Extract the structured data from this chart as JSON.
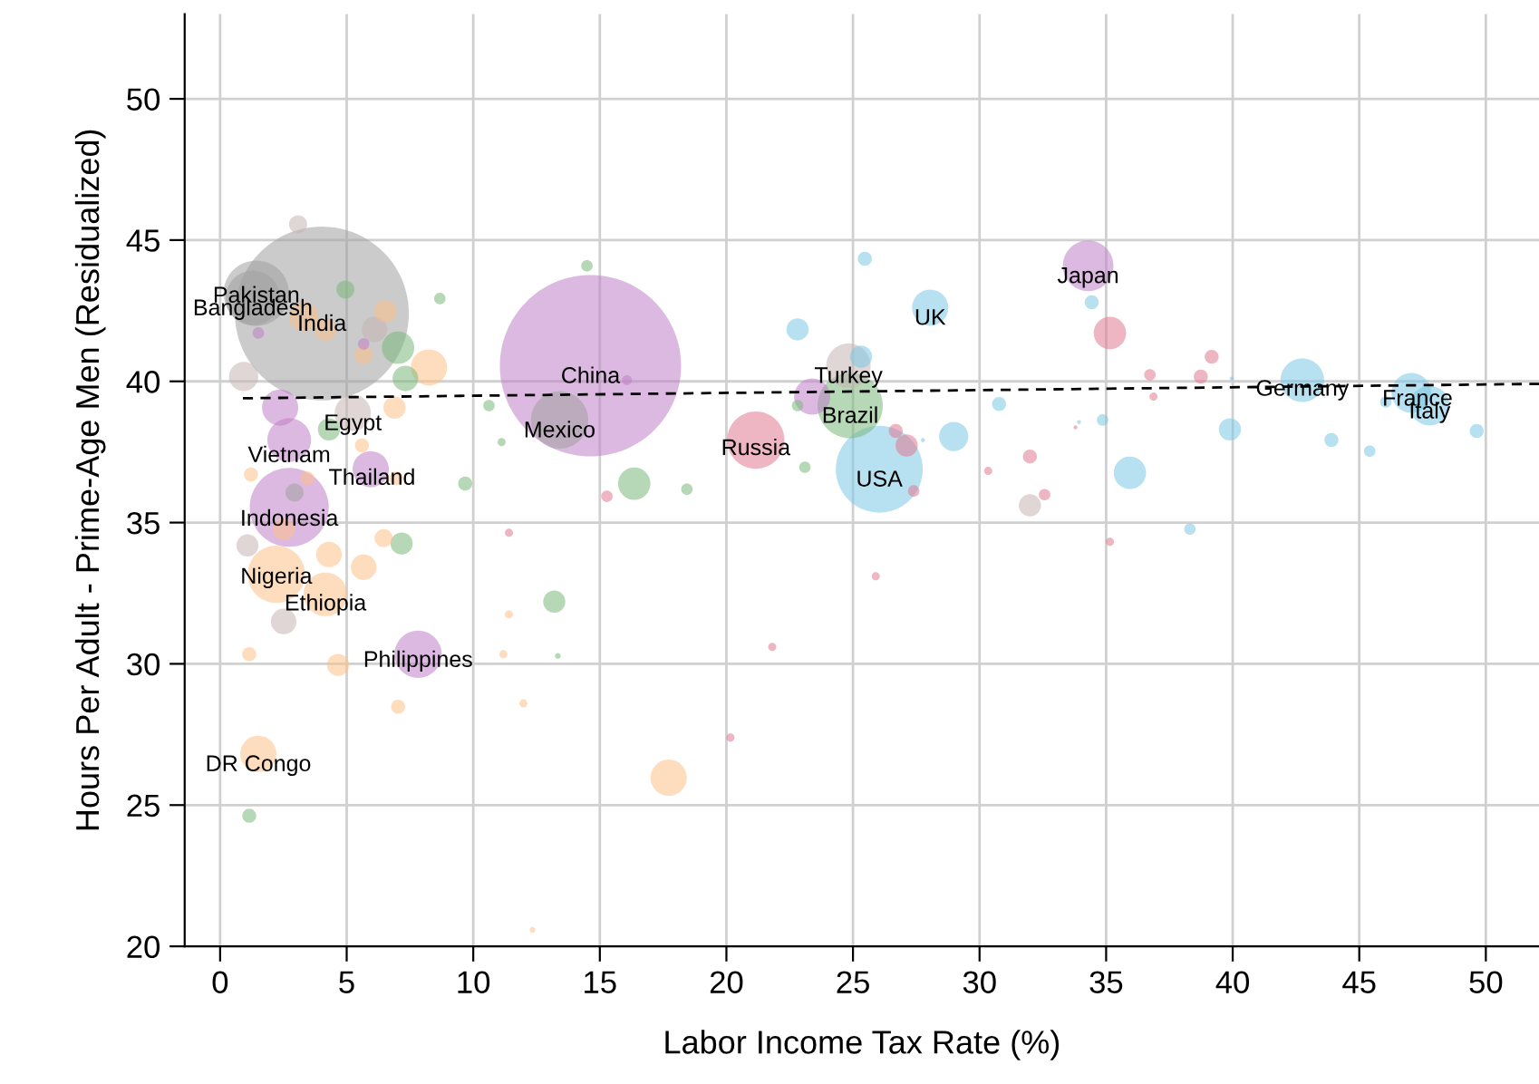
{
  "chart_data": {
    "type": "bubble",
    "xlabel": "Labor Income Tax Rate (%)",
    "ylabel": "Hours Per Adult - Prime-Age Men (Residualized)",
    "xlim": [
      -1.4,
      52.1
    ],
    "ylim": [
      20,
      53
    ],
    "xticks": [
      0,
      5,
      10,
      15,
      20,
      25,
      30,
      35,
      40,
      45,
      50
    ],
    "yticks": [
      20,
      25,
      30,
      35,
      40,
      45,
      50
    ],
    "grid": true,
    "legend": false,
    "series": [
      {
        "color": "#a0a0a0",
        "x": [
          4.02,
          1.43,
          1.29,
          13.41,
          2.94
        ],
        "values": [
          42.4,
          43.12,
          42.95,
          38.63,
          36.06
        ],
        "sizes": [
          0.92,
          0.13,
          0.09,
          0.1,
          0.01
        ]
      },
      {
        "color": "#c8b4b4",
        "x": [
          3.08,
          0.93,
          6.1,
          24.82,
          1.08,
          2.51,
          31.99,
          5.24
        ],
        "values": [
          45.56,
          40.17,
          41.84,
          40.55,
          34.19,
          31.5,
          35.61,
          38.88
        ],
        "sizes": [
          0.01,
          0.026,
          0.02,
          0.06,
          0.015,
          0.02,
          0.015,
          0.04
        ]
      },
      {
        "color": "#c080c8",
        "x": [
          14.63,
          34.29,
          2.73,
          2.73,
          5.95,
          7.82,
          2.37,
          23.39,
          1.51,
          5.67,
          16.07
        ],
        "values": [
          40.55,
          44.09,
          37.92,
          35.54,
          36.89,
          30.34,
          39.07,
          39.46,
          41.71,
          41.32,
          40.04
        ],
        "sizes": [
          1.0,
          0.078,
          0.058,
          0.19,
          0.04,
          0.068,
          0.04,
          0.04,
          0.004,
          0.004,
          0.003
        ]
      },
      {
        "color": "#fdc088",
        "x": [
          1.51,
          2.22,
          4.16,
          4.3,
          5.67,
          6.46,
          4.66,
          1.15,
          7.03,
          17.72,
          11.41,
          11.19,
          11.98,
          12.34,
          8.25,
          6.53,
          3.3,
          4.16,
          5.67,
          6.89,
          5.6,
          1.22,
          6.96,
          3.44,
          2.51
        ],
        "values": [
          26.81,
          33.17,
          32.46,
          33.87,
          33.42,
          34.45,
          29.96,
          30.34,
          28.48,
          25.97,
          31.75,
          30.34,
          28.6,
          20.58,
          40.49,
          42.48,
          42.29,
          41.84,
          40.94,
          39.07,
          37.73,
          36.7,
          36.57,
          36.57,
          34.77
        ],
        "sizes": [
          0.04,
          0.1,
          0.058,
          0.02,
          0.02,
          0.01,
          0.015,
          0.006,
          0.006,
          0.04,
          0.002,
          0.002,
          0.002,
          0.001,
          0.04,
          0.015,
          0.026,
          0.015,
          0.01,
          0.015,
          0.006,
          0.006,
          0.006,
          0.006,
          0.015
        ]
      },
      {
        "color": "#7cb87c",
        "x": [
          24.89,
          16.36,
          4.95,
          7.03,
          7.32,
          8.68,
          4.3,
          9.68,
          7.17,
          1.15,
          14.49,
          10.62,
          11.12,
          18.44,
          13.2,
          23.1,
          13.34,
          22.81
        ],
        "values": [
          39.14,
          36.38,
          43.25,
          41.19,
          40.1,
          42.93,
          38.3,
          36.38,
          34.26,
          24.62,
          44.09,
          39.14,
          37.85,
          36.18,
          32.2,
          36.96,
          30.28,
          39.14
        ],
        "sizes": [
          0.13,
          0.032,
          0.01,
          0.032,
          0.02,
          0.004,
          0.015,
          0.006,
          0.015,
          0.006,
          0.004,
          0.004,
          0.002,
          0.004,
          0.015,
          0.004,
          0.001,
          0.004
        ]
      },
      {
        "color": "#7cc8e4",
        "x": [
          26.04,
          28.05,
          42.75,
          47.06,
          47.78,
          25.47,
          22.81,
          34.43,
          28.98,
          30.77,
          34.86,
          35.94,
          39.89,
          43.9,
          45.41,
          46.05,
          49.64,
          38.31,
          27.76,
          25.32,
          33.93,
          39.96
        ],
        "values": [
          36.89,
          42.61,
          40.04,
          39.59,
          39.14,
          44.34,
          41.84,
          42.8,
          38.05,
          39.2,
          38.63,
          36.76,
          38.3,
          37.92,
          37.53,
          39.27,
          38.24,
          34.77,
          37.92,
          40.87,
          38.56,
          40.1
        ],
        "sizes": [
          0.23,
          0.04,
          0.058,
          0.048,
          0.048,
          0.006,
          0.015,
          0.006,
          0.026,
          0.006,
          0.004,
          0.032,
          0.015,
          0.006,
          0.004,
          0.004,
          0.006,
          0.004,
          0.0005,
          0.015,
          0.0005,
          0.0005
        ]
      },
      {
        "color": "#e07890",
        "x": [
          21.16,
          35.15,
          39.17,
          38.74,
          36.73,
          36.87,
          26.69,
          27.12,
          27.4,
          31.99,
          32.57,
          30.34,
          33.79,
          35.15,
          25.9,
          15.28,
          11.41,
          21.81,
          20.16
        ],
        "values": [
          37.92,
          41.71,
          40.87,
          40.17,
          40.23,
          39.46,
          38.24,
          37.73,
          36.12,
          37.34,
          35.99,
          36.83,
          38.37,
          34.32,
          33.1,
          35.93,
          34.64,
          30.6,
          27.39
        ],
        "sizes": [
          0.1,
          0.032,
          0.006,
          0.006,
          0.004,
          0.002,
          0.006,
          0.015,
          0.004,
          0.006,
          0.004,
          0.002,
          0.0005,
          0.002,
          0.002,
          0.004,
          0.002,
          0.002,
          0.002
        ]
      },
      {
        "type": "line",
        "color": "#000000",
        "line_style": "dashed",
        "x": [
          0.9,
          52.1
        ],
        "values": [
          39.4,
          39.91
        ]
      }
    ],
    "annotations": [
      {
        "text": "India",
        "x": 4.02,
        "y": 42.4
      },
      {
        "text": "Pakistan",
        "x": 1.43,
        "y": 43.4
      },
      {
        "text": "Bangladesh",
        "x": 1.29,
        "y": 42.95
      },
      {
        "text": "China",
        "x": 14.63,
        "y": 40.55
      },
      {
        "text": "Mexico",
        "x": 13.41,
        "y": 38.63
      },
      {
        "text": "Egypt",
        "x": 5.24,
        "y": 38.88
      },
      {
        "text": "Vietnam",
        "x": 2.73,
        "y": 37.75
      },
      {
        "text": "Thailand",
        "x": 6.0,
        "y": 36.95
      },
      {
        "text": "Indonesia",
        "x": 2.73,
        "y": 35.5
      },
      {
        "text": "Nigeria",
        "x": 2.22,
        "y": 33.45
      },
      {
        "text": "Ethiopia",
        "x": 4.16,
        "y": 32.5
      },
      {
        "text": "Philippines",
        "x": 7.82,
        "y": 30.5
      },
      {
        "text": "DR Congo",
        "x": 1.51,
        "y": 26.81
      },
      {
        "text": "Russia",
        "x": 21.16,
        "y": 38.0
      },
      {
        "text": "Turkey",
        "x": 24.82,
        "y": 40.55
      },
      {
        "text": "Brazil",
        "x": 24.89,
        "y": 39.14
      },
      {
        "text": "USA",
        "x": 26.04,
        "y": 36.89
      },
      {
        "text": "UK",
        "x": 28.05,
        "y": 42.61
      },
      {
        "text": "Japan",
        "x": 34.29,
        "y": 44.09
      },
      {
        "text": "Germany",
        "x": 42.75,
        "y": 40.1
      },
      {
        "text": "France",
        "x": 47.3,
        "y": 39.75
      },
      {
        "text": "Italy",
        "x": 47.78,
        "y": 39.3
      }
    ]
  }
}
